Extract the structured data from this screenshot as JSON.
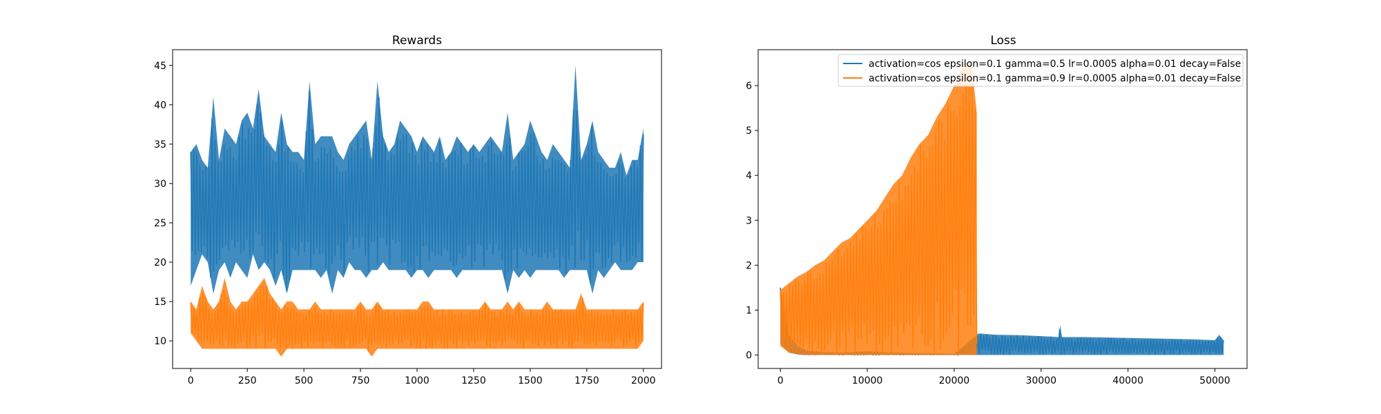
{
  "colors": {
    "blue": "#1f77b4",
    "orange": "#ff7f0e"
  },
  "chart_data": [
    {
      "type": "line",
      "title": "Rewards",
      "xlabel": "",
      "ylabel": "",
      "xlim": [
        -80,
        2080
      ],
      "ylim": [
        6.5,
        47.0
      ],
      "grid": false,
      "xticks": [
        0,
        250,
        500,
        750,
        1000,
        1250,
        1500,
        1750,
        2000
      ],
      "xtick_labels": [
        "0",
        "250",
        "500",
        "750",
        "1000",
        "1250",
        "1500",
        "1750",
        "2000"
      ],
      "yticks": [
        10,
        15,
        20,
        25,
        30,
        35,
        40,
        45
      ],
      "ytick_labels": [
        "10",
        "15",
        "20",
        "25",
        "30",
        "35",
        "40",
        "45"
      ],
      "series": [
        {
          "color": "#1f77b4",
          "x": [
            0,
            25,
            50,
            75,
            100,
            125,
            150,
            175,
            200,
            225,
            250,
            275,
            300,
            325,
            350,
            375,
            400,
            425,
            450,
            475,
            500,
            525,
            550,
            575,
            600,
            625,
            650,
            675,
            700,
            725,
            750,
            775,
            800,
            825,
            850,
            875,
            900,
            925,
            950,
            975,
            1000,
            1025,
            1050,
            1075,
            1100,
            1125,
            1150,
            1175,
            1200,
            1225,
            1250,
            1275,
            1300,
            1325,
            1350,
            1375,
            1400,
            1425,
            1450,
            1475,
            1500,
            1525,
            1550,
            1575,
            1600,
            1625,
            1650,
            1675,
            1700,
            1725,
            1750,
            1775,
            1800,
            1825,
            1850,
            1875,
            1900,
            1925,
            1950,
            1975,
            2000
          ],
          "y_max": [
            34,
            35,
            33,
            32,
            41,
            33,
            37,
            36,
            35,
            38,
            39,
            37,
            42,
            36,
            35,
            34,
            39,
            35,
            34,
            34,
            33,
            43,
            35,
            36,
            36,
            36,
            34,
            33,
            35,
            36,
            37,
            38,
            33,
            43,
            36,
            34,
            35,
            38,
            37,
            36,
            34,
            36,
            35,
            34,
            36,
            33,
            34,
            36,
            35,
            34,
            35,
            34,
            35,
            36,
            35,
            34,
            39,
            33,
            34,
            35,
            38,
            36,
            34,
            33,
            35,
            34,
            33,
            32,
            45,
            33,
            35,
            38,
            34,
            33,
            32,
            32,
            34,
            31,
            33,
            33,
            37
          ],
          "y_min": [
            17,
            19,
            21,
            20,
            16,
            19,
            20,
            18,
            20,
            19,
            18,
            21,
            19,
            20,
            19,
            17,
            19,
            16,
            19,
            19,
            19,
            19,
            19,
            18,
            19,
            16,
            19,
            18,
            20,
            19,
            19,
            18,
            19,
            19,
            20,
            19,
            19,
            19,
            19,
            18,
            19,
            19,
            18,
            19,
            19,
            19,
            19,
            18,
            19,
            19,
            19,
            19,
            19,
            19,
            19,
            19,
            16,
            19,
            18,
            19,
            18,
            19,
            19,
            19,
            19,
            19,
            18,
            19,
            19,
            19,
            19,
            16,
            19,
            18,
            19,
            20,
            19,
            19,
            19,
            20,
            20
          ]
        },
        {
          "color": "#ff7f0e",
          "x": [
            0,
            25,
            50,
            75,
            100,
            125,
            150,
            175,
            200,
            225,
            250,
            275,
            300,
            325,
            350,
            375,
            400,
            425,
            450,
            475,
            500,
            525,
            550,
            575,
            600,
            625,
            650,
            675,
            700,
            725,
            750,
            775,
            800,
            825,
            850,
            875,
            900,
            925,
            950,
            975,
            1000,
            1025,
            1050,
            1075,
            1100,
            1125,
            1150,
            1175,
            1200,
            1225,
            1250,
            1275,
            1300,
            1325,
            1350,
            1375,
            1400,
            1425,
            1450,
            1475,
            1500,
            1525,
            1550,
            1575,
            1600,
            1625,
            1650,
            1675,
            1700,
            1725,
            1750,
            1775,
            1800,
            1825,
            1850,
            1875,
            1900,
            1925,
            1950,
            1975,
            2000
          ],
          "y_max": [
            15,
            14,
            17,
            15,
            14,
            15,
            18,
            15,
            14,
            15,
            15,
            16,
            17,
            18,
            16,
            15,
            14,
            15,
            15,
            14,
            14,
            14,
            15,
            14,
            14,
            14,
            14,
            14,
            14,
            14,
            15,
            14,
            14,
            15,
            14,
            14,
            14,
            14,
            14,
            14,
            14,
            15,
            15,
            14,
            14,
            14,
            14,
            14,
            14,
            14,
            14,
            14,
            15,
            14,
            14,
            14,
            15,
            14,
            15,
            14,
            14,
            14,
            14,
            15,
            14,
            14,
            14,
            14,
            14,
            16,
            14,
            14,
            14,
            14,
            14,
            14,
            14,
            14,
            14,
            14,
            15
          ],
          "y_min": [
            11,
            10,
            9,
            9,
            9,
            9,
            9,
            9,
            9,
            9,
            9,
            9,
            9,
            9,
            9,
            9,
            8,
            9,
            9,
            9,
            9,
            9,
            9,
            9,
            9,
            9,
            9,
            9,
            9,
            9,
            9,
            9,
            8,
            9,
            9,
            9,
            9,
            9,
            9,
            9,
            9,
            9,
            9,
            9,
            9,
            9,
            9,
            9,
            9,
            9,
            9,
            9,
            9,
            9,
            9,
            9,
            9,
            9,
            9,
            9,
            9,
            9,
            9,
            9,
            9,
            9,
            9,
            9,
            9,
            9,
            9,
            9,
            9,
            9,
            9,
            9,
            9,
            9,
            9,
            9,
            10
          ]
        }
      ]
    },
    {
      "type": "line",
      "title": "Loss",
      "xlabel": "",
      "ylabel": "",
      "xlim": [
        -2560,
        53700
      ],
      "ylim": [
        -0.3,
        6.8
      ],
      "grid": false,
      "legend_position": "top-right",
      "xticks": [
        0,
        10000,
        20000,
        30000,
        40000,
        50000
      ],
      "xtick_labels": [
        "0",
        "10000",
        "20000",
        "30000",
        "40000",
        "50000"
      ],
      "yticks": [
        0,
        1,
        2,
        3,
        4,
        5,
        6
      ],
      "ytick_labels": [
        "0",
        "1",
        "2",
        "3",
        "4",
        "5",
        "6"
      ],
      "series": [
        {
          "name": "activation=cos epsilon=0.1 gamma=0.5 lr=0.0005 alpha=0.01 decay=False",
          "color": "#1f77b4",
          "x": [
            0,
            1000,
            2000,
            3000,
            4000,
            5000,
            7500,
            10000,
            12500,
            15000,
            17500,
            20000,
            22800,
            25000,
            27500,
            30000,
            32000,
            32200,
            32400,
            35000,
            37500,
            40000,
            42500,
            45000,
            47500,
            50000,
            50500,
            51000
          ],
          "y_max": [
            1.5,
            0.45,
            0.2,
            0.1,
            0.08,
            0.06,
            0.05,
            0.08,
            0.05,
            0.04,
            0.03,
            0.02,
            0.48,
            0.45,
            0.44,
            0.42,
            0.4,
            0.66,
            0.4,
            0.4,
            0.39,
            0.38,
            0.37,
            0.36,
            0.35,
            0.33,
            0.45,
            0.33
          ],
          "y_min": [
            0.25,
            0.05,
            0.01,
            0.0,
            0.0,
            0.0,
            0.0,
            0.0,
            0.0,
            0.0,
            0.0,
            0.0,
            0.0,
            0.0,
            0.0,
            0.0,
            0.0,
            0.0,
            0.0,
            0.0,
            0.0,
            0.0,
            0.0,
            0.0,
            0.0,
            0.0,
            0.0,
            0.0
          ]
        },
        {
          "name": "activation=cos epsilon=0.1 gamma=0.9 lr=0.0005 alpha=0.01 decay=False",
          "color": "#ff7f0e",
          "x": [
            0,
            1000,
            2000,
            3000,
            4000,
            5000,
            6000,
            7000,
            8000,
            9000,
            10000,
            11000,
            12000,
            13000,
            14000,
            15000,
            16000,
            17000,
            18000,
            19000,
            20000,
            21000,
            22000,
            22600
          ],
          "y_max": [
            1.45,
            1.6,
            1.75,
            1.85,
            2.0,
            2.1,
            2.3,
            2.5,
            2.6,
            2.8,
            3.0,
            3.2,
            3.5,
            3.8,
            4.0,
            4.4,
            4.7,
            4.9,
            5.3,
            5.6,
            6.0,
            6.5,
            6.5,
            5.4
          ],
          "y_min": [
            0.2,
            0.05,
            0.02,
            0.0,
            0.0,
            0.0,
            0.0,
            0.0,
            0.0,
            0.0,
            0.0,
            0.0,
            0.0,
            0.0,
            0.0,
            0.0,
            0.0,
            0.0,
            0.0,
            0.0,
            0.0,
            0.0,
            0.0,
            0.0
          ]
        }
      ]
    }
  ]
}
